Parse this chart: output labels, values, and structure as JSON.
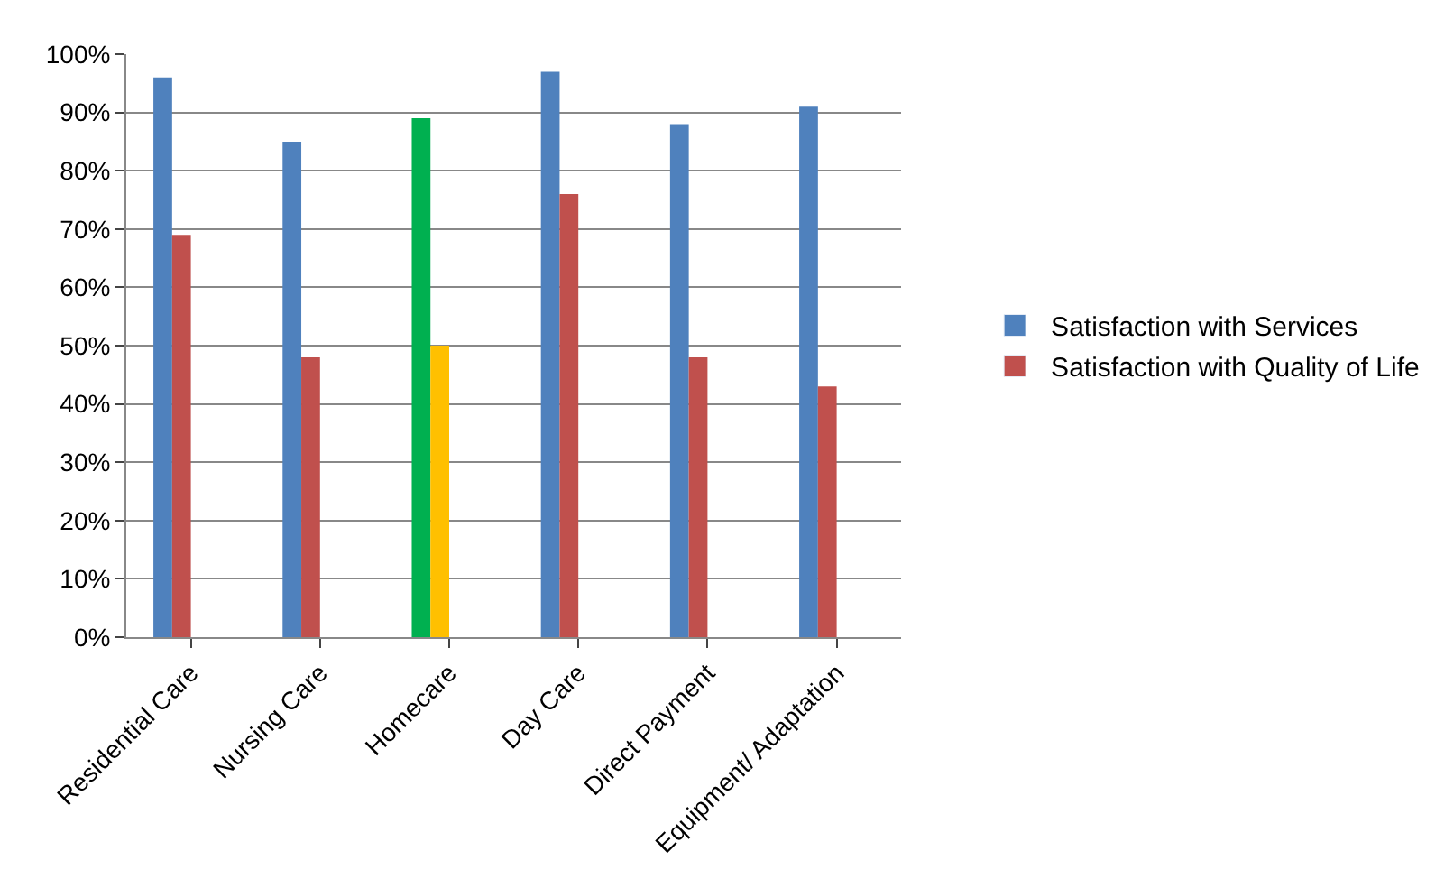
{
  "chart_data": {
    "type": "bar",
    "categories": [
      "Residential Care",
      "Nursing Care",
      "Homecare",
      "Day Care",
      "Direct Payment",
      "Equipment/ Adaptation"
    ],
    "series": [
      {
        "name": "Satisfaction with Services",
        "color": "#4f81bd",
        "colors": [
          "#4f81bd",
          "#4f81bd",
          "#00b050",
          "#4f81bd",
          "#4f81bd",
          "#4f81bd"
        ],
        "values": [
          96,
          85,
          89,
          97,
          88,
          91
        ]
      },
      {
        "name": "Satisfaction with Quality of Life",
        "color": "#c0504d",
        "colors": [
          "#c0504d",
          "#c0504d",
          "#ffc000",
          "#c0504d",
          "#c0504d",
          "#c0504d"
        ],
        "values": [
          69,
          48,
          50,
          76,
          48,
          43
        ]
      }
    ],
    "ylim": [
      0,
      100
    ],
    "yticks": [
      {
        "value": 0,
        "label": "0%"
      },
      {
        "value": 10,
        "label": "10%"
      },
      {
        "value": 20,
        "label": "20%"
      },
      {
        "value": 30,
        "label": "30%"
      },
      {
        "value": 40,
        "label": "40%"
      },
      {
        "value": 50,
        "label": "50%"
      },
      {
        "value": 60,
        "label": "60%"
      },
      {
        "value": 70,
        "label": "70%"
      },
      {
        "value": 80,
        "label": "80%"
      },
      {
        "value": 90,
        "label": "90%"
      },
      {
        "value": 100,
        "label": "100%"
      }
    ],
    "grid": "y",
    "legend": "right"
  }
}
